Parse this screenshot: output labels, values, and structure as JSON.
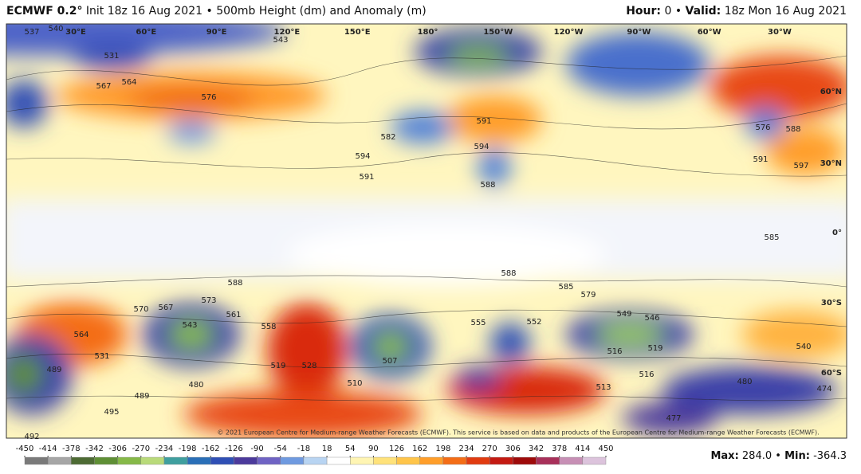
{
  "header": {
    "model": "ECMWF 0.2°",
    "description": "Init 18z 16 Aug 2021 • 500mb Height (dm) and Anomaly (m)",
    "hour_label": "Hour:",
    "hour": "0 •",
    "valid_label": "Valid:",
    "valid": "18z Mon 16 Aug 2021"
  },
  "map": {
    "longitude_labels": [
      "30°E",
      "60°E",
      "90°E",
      "120°E",
      "150°E",
      "180°",
      "150°W",
      "120°W",
      "90°W",
      "60°W",
      "30°W"
    ],
    "latitude_labels": [
      "60°N",
      "30°N",
      "0°",
      "30°S",
      "60°S"
    ],
    "contour_labels": [
      "537",
      "540",
      "543",
      "531",
      "567",
      "564",
      "576",
      "594",
      "591",
      "582",
      "594",
      "591",
      "588",
      "588",
      "585",
      "579",
      "588",
      "585",
      "591",
      "597",
      "588",
      "576",
      "570",
      "567",
      "573",
      "561",
      "558",
      "543",
      "564",
      "531",
      "528",
      "519",
      "516",
      "519",
      "549",
      "546",
      "552",
      "555",
      "507",
      "489",
      "480",
      "489",
      "495",
      "492",
      "513",
      "516",
      "510",
      "540",
      "480",
      "474",
      "477"
    ],
    "credit": "© 2021 European Centre for Medium-range Weather Forecasts (ECMWF). This service is based on data and products of the European Centre for Medium-range Weather Forecasts (ECMWF)."
  },
  "colorbar": {
    "ticks": [
      -450,
      -414,
      -378,
      -342,
      -306,
      -270,
      -234,
      -198,
      -162,
      -126,
      -90,
      -54,
      -18,
      18,
      54,
      90,
      126,
      162,
      198,
      234,
      270,
      306,
      342,
      378,
      414,
      450
    ],
    "colors": [
      "#7a7a7a",
      "#a6a6a6",
      "#4d6b34",
      "#5f8f35",
      "#86b948",
      "#b9da7a",
      "#3f9f9f",
      "#2a6fb8",
      "#2f4fb5",
      "#4c3a9c",
      "#6f63c4",
      "#6f9ae0",
      "#b8d4f2",
      "#ffffff",
      "#fff5b3",
      "#ffe27a",
      "#ffc54a",
      "#ff9e2a",
      "#f46d16",
      "#e13b10",
      "#c41a12",
      "#9e0a0a",
      "#a8305a",
      "#c78fb5",
      "#dcc3dc"
    ]
  },
  "footer": {
    "max_label": "Max:",
    "max": "284.0 •",
    "min_label": "Min:",
    "min": "-364.3"
  }
}
